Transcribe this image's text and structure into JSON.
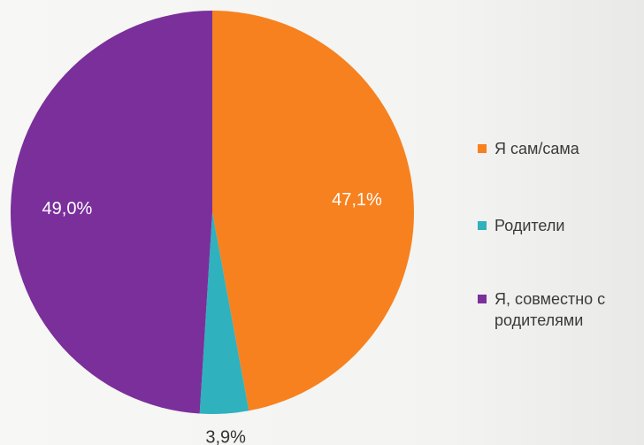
{
  "chart_data": {
    "type": "pie",
    "title": "",
    "slices": [
      {
        "label": "Я сам/сама",
        "value": 47.1,
        "value_label": "47,1%",
        "color": "#f7811f"
      },
      {
        "label": "Родители",
        "value": 3.9,
        "value_label": "3,9%",
        "color": "#2fb1be"
      },
      {
        "label": "Я, совместно с\nродителями",
        "value": 49.0,
        "value_label": "49,0%",
        "color": "#7a2f9b"
      }
    ],
    "start": "top",
    "direction": "clockwise",
    "legend_position": "right"
  }
}
